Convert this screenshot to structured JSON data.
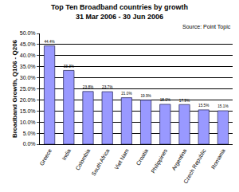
{
  "chart_data": {
    "type": "bar",
    "title": "Top Ten Broadband countries by growth",
    "subtitle": "31 Mar 2006 - 30 Jun 2006",
    "annotations": [
      "Source: Point Topic"
    ],
    "y_label": "Broadband Growth, Q106 - Q206",
    "categories": [
      "Greece",
      "India",
      "Colombia",
      "South Africa",
      "Viet Nam",
      "Croatia",
      "Philippines",
      "Argentina",
      "Czech Republic",
      "Romania"
    ],
    "values": [
      44.4,
      33.3,
      23.8,
      23.7,
      21.0,
      19.9,
      18.0,
      17.9,
      15.5,
      15.1
    ],
    "value_labels": [
      "44.4%",
      "33.3%",
      "23.8%",
      "23.7%",
      "21.0%",
      "19.9%",
      "18.0%",
      "17.9%",
      "15.5%",
      "15.1%"
    ],
    "data_labels": true,
    "color": "#9999ff",
    "ylim": [
      0,
      50
    ],
    "yticks": [
      {
        "value": 0,
        "label": "0.0%"
      },
      {
        "value": 5,
        "label": "5.0%"
      },
      {
        "value": 10,
        "label": "10.0%"
      },
      {
        "value": 15,
        "label": "15.0%"
      },
      {
        "value": 20,
        "label": "20.0%"
      },
      {
        "value": 25,
        "label": "25.0%"
      },
      {
        "value": 30,
        "label": "30.0%"
      },
      {
        "value": 35,
        "label": "35.0%"
      },
      {
        "value": 40,
        "label": "40.0%"
      },
      {
        "value": 45,
        "label": "45.0%"
      },
      {
        "value": 50,
        "label": "50.0%"
      }
    ],
    "grid": true
  }
}
